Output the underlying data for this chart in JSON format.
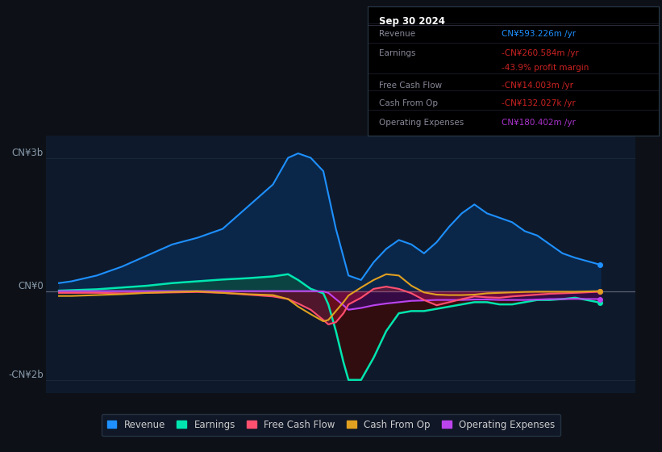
{
  "bg_color": "#0d1117",
  "plot_bg_color": "#0e1a2b",
  "title_box": {
    "date": "Sep 30 2024",
    "rows": [
      {
        "label": "Revenue",
        "value": "CN¥593.226m /yr",
        "value_color": "#1e90ff"
      },
      {
        "label": "Earnings",
        "value": "-CN¥260.584m /yr",
        "value_color": "#cc2222"
      },
      {
        "label": "",
        "value": "-43.9% profit margin",
        "value_color": "#cc2222"
      },
      {
        "label": "Free Cash Flow",
        "value": "-CN¥14.003m /yr",
        "value_color": "#cc2222"
      },
      {
        "label": "Cash From Op",
        "value": "-CN¥132.027k /yr",
        "value_color": "#cc2222"
      },
      {
        "label": "Operating Expenses",
        "value": "CN¥180.402m /yr",
        "value_color": "#aa33cc"
      }
    ]
  },
  "ylim": [
    -2300000000.0,
    3500000000.0
  ],
  "ytick_vals": [
    -2000000000.0,
    0,
    3000000000.0
  ],
  "ytick_labels": [
    "-CN¥2b",
    "CN¥0",
    "CN¥3b"
  ],
  "xlim": [
    2013.5,
    2025.2
  ],
  "xticks": [
    2014,
    2015,
    2016,
    2017,
    2018,
    2019,
    2020,
    2021,
    2022,
    2023,
    2024
  ],
  "grid_color": "#1e2d3d",
  "zero_line_color": "#888899",
  "colors": {
    "revenue_line": "#1e90ff",
    "revenue_fill": "#0a2a50",
    "earnings_line": "#00e5b0",
    "earnings_fill_pos": "#0a5040",
    "earnings_fill_neg": "#3a0a0a",
    "fcf_line": "#ff5070",
    "fcf_fill": "#80102030",
    "cashop_line": "#e0a020",
    "opex_line": "#bb44ee",
    "opex_fill": "#40104060"
  },
  "legend": [
    {
      "label": "Revenue",
      "color": "#1e90ff"
    },
    {
      "label": "Earnings",
      "color": "#00e5b0"
    },
    {
      "label": "Free Cash Flow",
      "color": "#ff5070"
    },
    {
      "label": "Cash From Op",
      "color": "#e0a020"
    },
    {
      "label": "Operating Expenses",
      "color": "#bb44ee"
    }
  ],
  "revenue_x": [
    2013.75,
    2014.0,
    2014.5,
    2015.0,
    2015.5,
    2016.0,
    2016.5,
    2017.0,
    2017.5,
    2018.0,
    2018.3,
    2018.5,
    2018.75,
    2019.0,
    2019.25,
    2019.5,
    2019.75,
    2020.0,
    2020.25,
    2020.5,
    2020.75,
    2021.0,
    2021.25,
    2021.5,
    2021.75,
    2022.0,
    2022.25,
    2022.5,
    2022.75,
    2023.0,
    2023.25,
    2023.5,
    2023.75,
    2024.0,
    2024.5
  ],
  "revenue_y": [
    180000000.0,
    220000000.0,
    350000000.0,
    550000000.0,
    800000000.0,
    1050000000.0,
    1200000000.0,
    1400000000.0,
    1900000000.0,
    2400000000.0,
    3000000000.0,
    3100000000.0,
    3000000000.0,
    2700000000.0,
    1400000000.0,
    350000000.0,
    250000000.0,
    650000000.0,
    950000000.0,
    1150000000.0,
    1050000000.0,
    850000000.0,
    1100000000.0,
    1450000000.0,
    1750000000.0,
    1950000000.0,
    1750000000.0,
    1650000000.0,
    1550000000.0,
    1350000000.0,
    1250000000.0,
    1050000000.0,
    850000000.0,
    750000000.0,
    593000000.0
  ],
  "earnings_x": [
    2013.75,
    2014.0,
    2014.5,
    2015.0,
    2015.5,
    2016.0,
    2016.5,
    2017.0,
    2017.5,
    2018.0,
    2018.3,
    2018.5,
    2018.75,
    2019.0,
    2019.1,
    2019.25,
    2019.4,
    2019.5,
    2019.75,
    2020.0,
    2020.25,
    2020.5,
    2020.75,
    2021.0,
    2021.25,
    2021.5,
    2021.75,
    2022.0,
    2022.25,
    2022.5,
    2022.75,
    2023.0,
    2023.25,
    2023.5,
    2023.75,
    2024.0,
    2024.5
  ],
  "earnings_y": [
    10000000.0,
    20000000.0,
    40000000.0,
    80000000.0,
    120000000.0,
    180000000.0,
    220000000.0,
    260000000.0,
    290000000.0,
    330000000.0,
    380000000.0,
    250000000.0,
    50000000.0,
    -50000000.0,
    -300000000.0,
    -900000000.0,
    -1600000000.0,
    -2000000000.0,
    -2000000000.0,
    -1500000000.0,
    -900000000.0,
    -500000000.0,
    -450000000.0,
    -450000000.0,
    -400000000.0,
    -350000000.0,
    -300000000.0,
    -250000000.0,
    -250000000.0,
    -300000000.0,
    -300000000.0,
    -250000000.0,
    -200000000.0,
    -200000000.0,
    -180000000.0,
    -150000000.0,
    -260000000.0
  ],
  "fcf_x": [
    2013.75,
    2014.0,
    2014.5,
    2015.0,
    2015.5,
    2016.0,
    2016.5,
    2017.0,
    2017.5,
    2018.0,
    2018.3,
    2018.5,
    2018.75,
    2019.0,
    2019.1,
    2019.25,
    2019.4,
    2019.5,
    2019.75,
    2020.0,
    2020.25,
    2020.5,
    2020.75,
    2021.0,
    2021.25,
    2021.5,
    2021.75,
    2022.0,
    2022.25,
    2022.5,
    2022.75,
    2023.0,
    2023.25,
    2023.5,
    2023.75,
    2024.0,
    2024.5
  ],
  "fcf_y": [
    -40000000.0,
    -40000000.0,
    -40000000.0,
    -50000000.0,
    -40000000.0,
    -30000000.0,
    -20000000.0,
    -40000000.0,
    -80000000.0,
    -120000000.0,
    -180000000.0,
    -280000000.0,
    -420000000.0,
    -650000000.0,
    -750000000.0,
    -700000000.0,
    -500000000.0,
    -300000000.0,
    -150000000.0,
    50000000.0,
    100000000.0,
    50000000.0,
    -50000000.0,
    -200000000.0,
    -320000000.0,
    -250000000.0,
    -180000000.0,
    -120000000.0,
    -140000000.0,
    -150000000.0,
    -120000000.0,
    -100000000.0,
    -80000000.0,
    -60000000.0,
    -50000000.0,
    -40000000.0,
    -14000000.0
  ],
  "cashop_x": [
    2013.75,
    2014.0,
    2014.5,
    2015.0,
    2015.5,
    2016.0,
    2016.5,
    2017.0,
    2017.5,
    2018.0,
    2018.3,
    2018.5,
    2018.75,
    2019.0,
    2019.1,
    2019.25,
    2019.4,
    2019.5,
    2019.75,
    2020.0,
    2020.25,
    2020.5,
    2020.75,
    2021.0,
    2021.25,
    2021.5,
    2021.75,
    2022.0,
    2022.25,
    2022.5,
    2022.75,
    2023.0,
    2023.25,
    2023.5,
    2023.75,
    2024.0,
    2024.5
  ],
  "cashop_y": [
    -110000000.0,
    -110000000.0,
    -90000000.0,
    -70000000.0,
    -40000000.0,
    -20000000.0,
    -5000000.0,
    -40000000.0,
    -70000000.0,
    -90000000.0,
    -180000000.0,
    -350000000.0,
    -520000000.0,
    -680000000.0,
    -650000000.0,
    -450000000.0,
    -250000000.0,
    -100000000.0,
    80000000.0,
    250000000.0,
    380000000.0,
    350000000.0,
    120000000.0,
    -30000000.0,
    -80000000.0,
    -90000000.0,
    -90000000.0,
    -80000000.0,
    -50000000.0,
    -40000000.0,
    -30000000.0,
    -20000000.0,
    -15000000.0,
    -15000000.0,
    -15000000.0,
    -15000000.0,
    -132000.0
  ],
  "opex_x": [
    2013.75,
    2014.0,
    2014.5,
    2015.0,
    2015.5,
    2016.0,
    2016.5,
    2017.0,
    2017.5,
    2018.0,
    2018.3,
    2018.5,
    2018.75,
    2019.0,
    2019.1,
    2019.25,
    2019.4,
    2019.5,
    2019.75,
    2020.0,
    2020.25,
    2020.5,
    2020.75,
    2021.0,
    2021.25,
    2021.5,
    2021.75,
    2022.0,
    2022.25,
    2022.5,
    2022.75,
    2023.0,
    2023.25,
    2023.5,
    2023.75,
    2024.0,
    2024.5
  ],
  "opex_y": [
    0,
    0,
    0,
    0,
    0,
    0,
    0,
    0,
    0,
    0,
    0,
    0,
    0,
    -8000000.0,
    -40000000.0,
    -180000000.0,
    -320000000.0,
    -420000000.0,
    -380000000.0,
    -320000000.0,
    -280000000.0,
    -250000000.0,
    -220000000.0,
    -210000000.0,
    -200000000.0,
    -200000000.0,
    -200000000.0,
    -190000000.0,
    -190000000.0,
    -200000000.0,
    -200000000.0,
    -200000000.0,
    -190000000.0,
    -180000000.0,
    -180000000.0,
    -175000000.0,
    -180000000.0
  ]
}
